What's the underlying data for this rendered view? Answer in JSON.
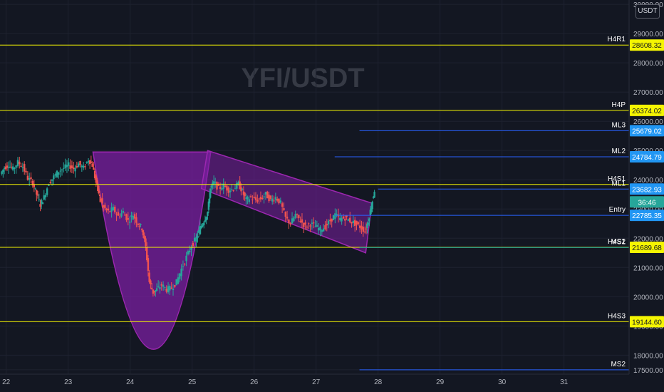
{
  "chart_data": {
    "type": "candlestick",
    "title": "YFI/USDT",
    "currency": "USDT",
    "yaxis": {
      "ticks": [
        30000,
        29000,
        28000,
        27000,
        26000,
        25000,
        24000,
        23000,
        22000,
        21000,
        20000,
        19000,
        18000,
        17500
      ],
      "tick_labels": [
        "30000.00",
        "29000.00",
        "28000.00",
        "27000.00",
        "26000.00",
        "25000.00",
        "24000.00",
        "23000.00",
        "22000.00",
        "21000.00",
        "20000.00",
        "19000.00",
        "18000.00",
        "17500.00"
      ],
      "range": [
        17350,
        30150
      ]
    },
    "xaxis": {
      "tick_labels": [
        "22",
        "23",
        "24",
        "25",
        "26",
        "27",
        "28",
        "29",
        "30",
        "31"
      ],
      "range": [
        21.9,
        32.05
      ]
    },
    "levels": [
      {
        "name": "H4R1",
        "value": 28608.32,
        "label": "28608.32",
        "color": "#f5f502",
        "start": 21.9
      },
      {
        "name": "H4P",
        "value": 26374.02,
        "label": "26374.02",
        "color": "#f5f502",
        "start": 21.9
      },
      {
        "name": "ML3",
        "value": 25679.02,
        "label": "25679.02",
        "color": "#2962ff",
        "start": 27.7
      },
      {
        "name": "ML2",
        "value": 24784.79,
        "label": "24784.79",
        "color": "#2962ff",
        "start": 27.3
      },
      {
        "name": "H4S1",
        "value": 23840,
        "label": "",
        "color": "#f5f502",
        "start": 21.9
      },
      {
        "name": "ML1",
        "value": 23682.93,
        "label": "23682.93",
        "color": "#2962ff",
        "start": 28.0
      },
      {
        "name": "Entry",
        "value": 22785.35,
        "label": "22785.35",
        "color": "#2962ff",
        "start": 27.3
      },
      {
        "name": "H4S2",
        "value": 21689.68,
        "label": "21689.68",
        "color": "#f5f502",
        "start": 21.9
      },
      {
        "name": "MS1",
        "value": 21680,
        "label": "",
        "color": "#26a69a",
        "start": 27.7
      },
      {
        "name": "H4S3",
        "value": 19144.6,
        "label": "19144.60",
        "color": "#f5f502",
        "start": 21.9
      },
      {
        "name": "MS2",
        "value": 17500,
        "label": "",
        "color": "#2962ff",
        "start": 27.7
      }
    ],
    "last_price": {
      "value": 23682.93,
      "countdown": "36:46"
    },
    "series_close": [
      [
        21.92,
        24200
      ],
      [
        21.98,
        24420
      ],
      [
        22.05,
        24510
      ],
      [
        22.12,
        24360
      ],
      [
        22.2,
        24600
      ],
      [
        22.28,
        24450
      ],
      [
        22.36,
        24050
      ],
      [
        22.44,
        23900
      ],
      [
        22.5,
        23500
      ],
      [
        22.56,
        23150
      ],
      [
        22.62,
        23400
      ],
      [
        22.7,
        23900
      ],
      [
        22.78,
        24100
      ],
      [
        22.86,
        24300
      ],
      [
        22.94,
        24400
      ],
      [
        23.02,
        24500
      ],
      [
        23.1,
        24380
      ],
      [
        23.18,
        24550
      ],
      [
        23.26,
        24400
      ],
      [
        23.34,
        24700
      ],
      [
        23.4,
        24500
      ],
      [
        23.46,
        23900
      ],
      [
        23.52,
        23400
      ],
      [
        23.58,
        23050
      ],
      [
        23.66,
        22900
      ],
      [
        23.74,
        23000
      ],
      [
        23.82,
        22750
      ],
      [
        23.9,
        22900
      ],
      [
        23.98,
        22600
      ],
      [
        24.06,
        22800
      ],
      [
        24.14,
        22500
      ],
      [
        24.2,
        22350
      ],
      [
        24.26,
        21700
      ],
      [
        24.32,
        20500
      ],
      [
        24.38,
        20150
      ],
      [
        24.44,
        20250
      ],
      [
        24.52,
        20400
      ],
      [
        24.6,
        20250
      ],
      [
        24.68,
        20300
      ],
      [
        24.76,
        20500
      ],
      [
        24.84,
        20950
      ],
      [
        24.92,
        21350
      ],
      [
        25.0,
        21750
      ],
      [
        25.08,
        22000
      ],
      [
        25.14,
        22350
      ],
      [
        25.2,
        22600
      ],
      [
        25.26,
        22900
      ],
      [
        25.3,
        23700
      ],
      [
        25.36,
        23900
      ],
      [
        25.44,
        23700
      ],
      [
        25.52,
        23800
      ],
      [
        25.6,
        23650
      ],
      [
        25.68,
        23700
      ],
      [
        25.76,
        23850
      ],
      [
        25.82,
        23600
      ],
      [
        25.88,
        23300
      ],
      [
        25.96,
        23400
      ],
      [
        26.04,
        23300
      ],
      [
        26.12,
        23350
      ],
      [
        26.2,
        23500
      ],
      [
        26.28,
        23300
      ],
      [
        26.36,
        23400
      ],
      [
        26.44,
        23200
      ],
      [
        26.52,
        22700
      ],
      [
        26.6,
        22500
      ],
      [
        26.68,
        22800
      ],
      [
        26.76,
        22600
      ],
      [
        26.84,
        22400
      ],
      [
        26.92,
        22500
      ],
      [
        27.0,
        22400
      ],
      [
        27.08,
        22300
      ],
      [
        27.16,
        22400
      ],
      [
        27.24,
        22600
      ],
      [
        27.32,
        22800
      ],
      [
        27.4,
        22650
      ],
      [
        27.48,
        22700
      ],
      [
        27.56,
        22600
      ],
      [
        27.64,
        22500
      ],
      [
        27.72,
        22400
      ],
      [
        27.8,
        22250
      ],
      [
        27.85,
        22600
      ],
      [
        27.9,
        23100
      ],
      [
        27.95,
        23650
      ]
    ],
    "drawings": [
      {
        "name": "cup-shape",
        "kind": "parabola",
        "from": [
          23.4,
          24950
        ],
        "bottom": [
          24.4,
          18200
        ],
        "to": [
          25.3,
          24950
        ]
      },
      {
        "name": "descending-channel",
        "kind": "parallelogram",
        "points": [
          [
            25.25,
            25000
          ],
          [
            27.9,
            23200
          ],
          [
            27.8,
            21500
          ],
          [
            25.15,
            23700
          ]
        ]
      }
    ]
  }
}
